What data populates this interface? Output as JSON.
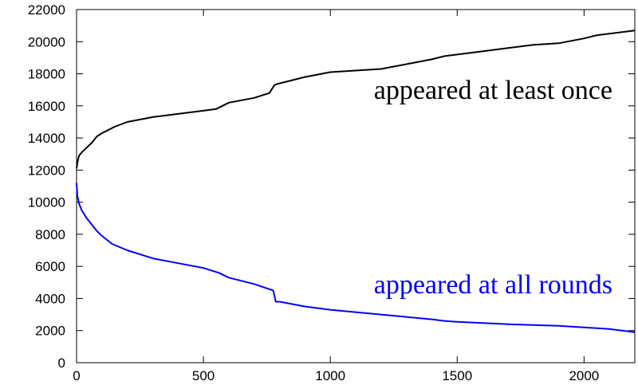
{
  "chart_data": {
    "type": "line",
    "title": "",
    "xlabel": "",
    "ylabel": "",
    "xlim": [
      0,
      2200
    ],
    "ylim": [
      0,
      22000
    ],
    "xticks": [
      0,
      500,
      1000,
      1500,
      2000
    ],
    "xtick_labels": [
      "0",
      "500",
      "1000",
      "1500",
      "2000"
    ],
    "yticks": [
      0,
      2000,
      4000,
      6000,
      8000,
      10000,
      12000,
      14000,
      16000,
      18000,
      20000,
      22000
    ],
    "ytick_labels": [
      "0",
      "2000",
      "4000",
      "6000",
      "8000",
      "10000",
      "12000",
      "14000",
      "16000",
      "18000",
      "20000",
      "22000"
    ],
    "grid": false,
    "series": [
      {
        "name": "appeared at least once",
        "color": "#000000",
        "x": [
          0,
          5,
          10,
          20,
          40,
          60,
          80,
          100,
          150,
          200,
          300,
          400,
          500,
          550,
          600,
          700,
          760,
          780,
          800,
          850,
          900,
          1000,
          1200,
          1300,
          1400,
          1450,
          1500,
          1600,
          1700,
          1800,
          1900,
          2000,
          2050,
          2100,
          2150,
          2200
        ],
        "y": [
          12100,
          12600,
          12900,
          13100,
          13400,
          13700,
          14100,
          14300,
          14700,
          15000,
          15300,
          15500,
          15700,
          15800,
          16200,
          16500,
          16800,
          17300,
          17400,
          17600,
          17800,
          18100,
          18300,
          18600,
          18900,
          19100,
          19200,
          19400,
          19600,
          19800,
          19900,
          20200,
          20400,
          20500,
          20600,
          20700
        ]
      },
      {
        "name": "appeared at all rounds",
        "color": "#0000ff",
        "x": [
          0,
          3,
          10,
          20,
          40,
          60,
          80,
          100,
          140,
          200,
          300,
          400,
          500,
          560,
          600,
          700,
          775,
          785,
          800,
          900,
          1000,
          1200,
          1400,
          1450,
          1500,
          1700,
          1900,
          2100,
          2200
        ],
        "y": [
          11200,
          10400,
          9900,
          9500,
          9000,
          8600,
          8200,
          7900,
          7400,
          7000,
          6500,
          6200,
          5900,
          5600,
          5300,
          4900,
          4500,
          3800,
          3800,
          3500,
          3300,
          3000,
          2700,
          2600,
          2550,
          2400,
          2300,
          2100,
          1900
        ]
      }
    ]
  }
}
